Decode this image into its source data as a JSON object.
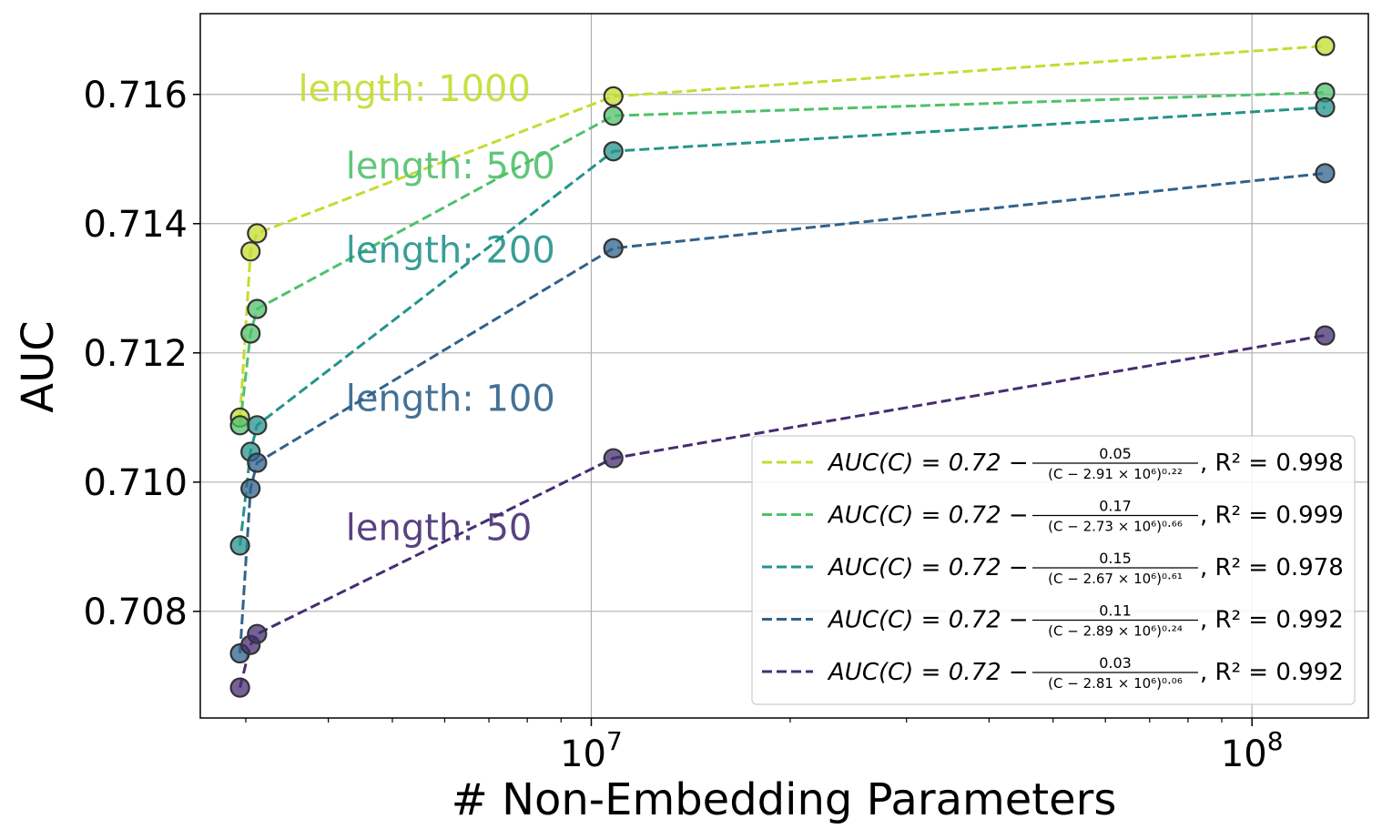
{
  "chart_data": {
    "type": "line",
    "xlabel": "# Non-Embedding Parameters",
    "ylabel": "AUC",
    "x_scale": "log",
    "xlim": [
      2560000,
      150000000
    ],
    "ylim": [
      0.70635,
      0.71725
    ],
    "x_ticks": [
      {
        "value": 10000000,
        "base": "10",
        "exp": "7"
      },
      {
        "value": 100000000,
        "base": "10",
        "exp": "8"
      }
    ],
    "y_ticks": [
      0.708,
      0.71,
      0.712,
      0.714,
      0.716
    ],
    "y_tick_labels": [
      "0.708",
      "0.710",
      "0.712",
      "0.714",
      "0.716"
    ],
    "grid": true,
    "legend_position": "lower-right",
    "series": [
      {
        "name": "length: 1000",
        "color": "#c4dc2f",
        "legend": {
          "prefix": "AUC(C) = 0.72 − ",
          "num": "0.05",
          "den": "(C − 2.91 × 10⁶)⁰·²²",
          "r2": ", R² = 0.998"
        },
        "points": [
          [
            2940000,
            0.711
          ],
          [
            3050000,
            0.71357
          ],
          [
            3120000,
            0.71385
          ],
          [
            10800000,
            0.71597
          ],
          [
            129000000,
            0.71675
          ]
        ]
      },
      {
        "name": "length: 500",
        "color": "#4fc16b",
        "legend": {
          "prefix": "AUC(C) = 0.72 − ",
          "num": "0.17",
          "den": "(C − 2.73 × 10⁶)⁰·⁶⁶",
          "r2": ", R² = 0.999"
        },
        "points": [
          [
            2940000,
            0.71088
          ],
          [
            3050000,
            0.7123
          ],
          [
            3120000,
            0.71268
          ],
          [
            10800000,
            0.71567
          ],
          [
            129000000,
            0.71603
          ]
        ]
      },
      {
        "name": "length: 200",
        "color": "#24938c",
        "legend": {
          "prefix": "AUC(C) = 0.72 − ",
          "num": "0.15",
          "den": "(C − 2.67 × 10⁶)⁰·⁶¹",
          "r2": ", R² = 0.978"
        },
        "points": [
          [
            2940000,
            0.70902
          ],
          [
            3050000,
            0.71047
          ],
          [
            3120000,
            0.71088
          ],
          [
            10800000,
            0.71512
          ],
          [
            129000000,
            0.7158
          ]
        ]
      },
      {
        "name": "length: 100",
        "color": "#30628c",
        "legend": {
          "prefix": "AUC(C) = 0.72 − ",
          "num": "0.11",
          "den": "(C − 2.89 × 10⁶)⁰·²⁴",
          "r2": ", R² = 0.992"
        },
        "points": [
          [
            2940000,
            0.70735
          ],
          [
            3050000,
            0.7099
          ],
          [
            3120000,
            0.7103
          ],
          [
            10800000,
            0.71362
          ],
          [
            129000000,
            0.71478
          ]
        ]
      },
      {
        "name": "length: 50",
        "color": "#462d72",
        "legend": {
          "prefix": "AUC(C) = 0.72 − ",
          "num": "0.03",
          "den": "(C − 2.81 × 10⁶)⁰·⁰⁶",
          "r2": ", R² = 0.992"
        },
        "points": [
          [
            2940000,
            0.70682
          ],
          [
            3050000,
            0.70748
          ],
          [
            3120000,
            0.70765
          ],
          [
            10800000,
            0.71037
          ],
          [
            129000000,
            0.71227
          ]
        ]
      }
    ],
    "annotations": [
      {
        "text": "length: 1000",
        "color": "#c4dc2f",
        "x": 3600000,
        "y": 0.7159
      },
      {
        "text": "length: 500",
        "color": "#4fc16b",
        "x": 4250000,
        "y": 0.7147
      },
      {
        "text": "length: 200",
        "color": "#24938c",
        "x": 4250000,
        "y": 0.7134
      },
      {
        "text": "length: 100",
        "color": "#30628c",
        "x": 4250000,
        "y": 0.7111
      },
      {
        "text": "length: 50",
        "color": "#462d72",
        "x": 4250000,
        "y": 0.7091
      }
    ]
  }
}
